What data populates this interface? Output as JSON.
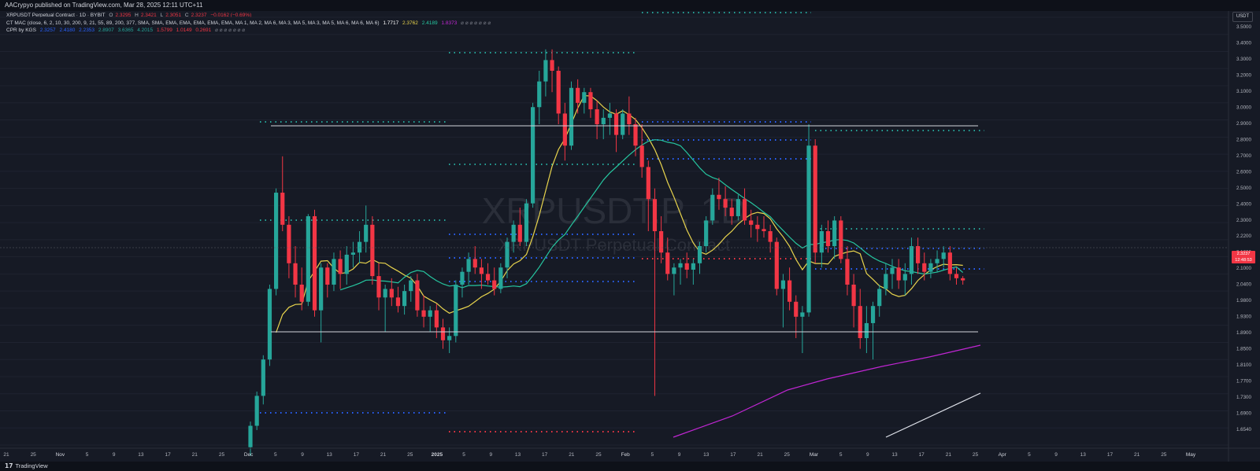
{
  "published": "AACrypyo published on TradingView.com, Mar 28, 2025 12:11 UTC+11",
  "legend": {
    "symbol": "XRPUSDT Perpetual Contract · 1D · BYBIT",
    "open_label": "O",
    "open": "2.3295",
    "high_label": "H",
    "high": "2.3421",
    "low_label": "L",
    "low": "2.3051",
    "close_label": "C",
    "close": "2.3237",
    "change": "−0.0162 (−0.69%)",
    "mac_name": "CT MAC (close, 6, 2, 10, 30, 200, 9, 21, 55, 89, 200, 377, SMA, SMA, EMA, EMA, EMA, EMA, EMA, MA 1, MA 2, MA 6, MA 3, MA 5, MA 3, MA 5, MA 6, MA 6, MA 6)",
    "mac_values": [
      "1.7717",
      "2.3762",
      "2.4189",
      "1.8373"
    ],
    "mac_colors": [
      "#ffffff",
      "#e8d44d",
      "#26c6a0",
      "#c026d3"
    ],
    "cpr_name": "CPR by KGS",
    "cpr_values": [
      "2.3257",
      "2.4180",
      "2.2353",
      "2.8907",
      "3.6365",
      "4.2015",
      "1.5799",
      "1.0149",
      "0.2691"
    ],
    "cpr_colors": [
      "#2962ff",
      "#2962ff",
      "#2962ff",
      "#26a69a",
      "#26a69a",
      "#26a69a",
      "#f23645",
      "#f23645",
      "#f23645"
    ],
    "na_marks": "⌀ ⌀ ⌀ ⌀ ⌀ ⌀ ⌀"
  },
  "watermark": {
    "title": "XRPUSDT.P, 1D",
    "subtitle": "XRPUSDT Perpetual Contract"
  },
  "price_axis": {
    "unit": "USDT",
    "labels": [
      "3.5000",
      "3.4000",
      "3.3000",
      "3.2000",
      "3.1000",
      "3.0000",
      "2.9000",
      "2.8000",
      "2.7000",
      "2.6000",
      "2.5000",
      "2.4000",
      "2.3000",
      "2.2200",
      "2.1600",
      "2.1000",
      "2.0400",
      "1.9800",
      "1.9300",
      "1.8900",
      "1.8500",
      "1.8100",
      "1.7700",
      "1.7300",
      "1.6900",
      "1.6540"
    ],
    "current_price": "2.3237",
    "countdown": "12:48:53"
  },
  "time_axis": {
    "labels": [
      "21",
      "25",
      "Nov",
      "5",
      "9",
      "13",
      "17",
      "21",
      "25",
      "Dec",
      "5",
      "9",
      "13",
      "17",
      "21",
      "25",
      "2025",
      "5",
      "9",
      "13",
      "17",
      "21",
      "25",
      "Feb",
      "5",
      "9",
      "13",
      "17",
      "21",
      "25",
      "Mar",
      "5",
      "9",
      "13",
      "17",
      "21",
      "25",
      "Apr",
      "5",
      "9",
      "13",
      "17",
      "21",
      "25",
      "May"
    ]
  },
  "chart_data": {
    "type": "candlestick",
    "symbol": "XRPUSDT.P",
    "interval": "1D",
    "ylim": [
      1.65,
      3.52
    ],
    "candles": [
      [
        1.54,
        1.66,
        1.5,
        1.64
      ],
      [
        1.64,
        1.8,
        1.62,
        1.78
      ],
      [
        1.78,
        1.97,
        1.74,
        1.95
      ],
      [
        1.95,
        2.3,
        1.92,
        2.28
      ],
      [
        2.28,
        2.75,
        2.25,
        2.73
      ],
      [
        2.73,
        2.9,
        2.55,
        2.58
      ],
      [
        2.58,
        2.62,
        2.33,
        2.4
      ],
      [
        2.4,
        2.48,
        2.24,
        2.3
      ],
      [
        2.3,
        2.38,
        2.18,
        2.22
      ],
      [
        2.22,
        2.63,
        2.2,
        2.62
      ],
      [
        2.62,
        2.65,
        2.15,
        2.18
      ],
      [
        2.18,
        2.4,
        2.03,
        2.38
      ],
      [
        2.38,
        2.4,
        2.24,
        2.3
      ],
      [
        2.3,
        2.45,
        2.27,
        2.42
      ],
      [
        2.42,
        2.46,
        2.28,
        2.35
      ],
      [
        2.35,
        2.48,
        2.3,
        2.44
      ],
      [
        2.44,
        2.5,
        2.38,
        2.45
      ],
      [
        2.45,
        2.55,
        2.4,
        2.5
      ],
      [
        2.5,
        2.67,
        2.45,
        2.58
      ],
      [
        2.58,
        2.62,
        2.3,
        2.34
      ],
      [
        2.34,
        2.4,
        2.18,
        2.24
      ],
      [
        2.24,
        2.3,
        2.08,
        2.28
      ],
      [
        2.28,
        2.33,
        2.2,
        2.24
      ],
      [
        2.24,
        2.29,
        2.17,
        2.2
      ],
      [
        2.2,
        2.3,
        2.16,
        2.27
      ],
      [
        2.27,
        2.34,
        2.22,
        2.32
      ],
      [
        2.32,
        2.35,
        2.15,
        2.18
      ],
      [
        2.18,
        2.25,
        2.1,
        2.15
      ],
      [
        2.15,
        2.2,
        2.08,
        2.18
      ],
      [
        2.18,
        2.21,
        2.05,
        2.1
      ],
      [
        2.1,
        2.14,
        2.0,
        2.04
      ],
      [
        2.04,
        2.1,
        1.98,
        2.06
      ],
      [
        2.06,
        2.32,
        2.03,
        2.3
      ],
      [
        2.3,
        2.38,
        2.24,
        2.36
      ],
      [
        2.36,
        2.45,
        2.3,
        2.42
      ],
      [
        2.42,
        2.48,
        2.35,
        2.38
      ],
      [
        2.38,
        2.42,
        2.28,
        2.35
      ],
      [
        2.35,
        2.4,
        2.3,
        2.32
      ],
      [
        2.32,
        2.38,
        2.25,
        2.28
      ],
      [
        2.28,
        2.4,
        2.26,
        2.38
      ],
      [
        2.38,
        2.52,
        2.33,
        2.5
      ],
      [
        2.5,
        2.6,
        2.45,
        2.58
      ],
      [
        2.58,
        2.66,
        2.48,
        2.5
      ],
      [
        2.5,
        2.7,
        2.48,
        2.68
      ],
      [
        2.68,
        3.15,
        2.66,
        3.13
      ],
      [
        3.13,
        3.3,
        3.05,
        3.25
      ],
      [
        3.25,
        3.4,
        3.18,
        3.35
      ],
      [
        3.35,
        3.4,
        3.2,
        3.3
      ],
      [
        3.3,
        3.32,
        3.05,
        3.1
      ],
      [
        3.1,
        3.15,
        2.88,
        2.95
      ],
      [
        2.95,
        3.25,
        2.93,
        3.22
      ],
      [
        3.22,
        3.26,
        3.1,
        3.15
      ],
      [
        3.15,
        3.22,
        3.1,
        3.2
      ],
      [
        3.2,
        3.22,
        3.08,
        3.12
      ],
      [
        3.12,
        3.16,
        2.98,
        3.05
      ],
      [
        3.05,
        3.12,
        2.98,
        3.08
      ],
      [
        3.08,
        3.15,
        3.0,
        3.1
      ],
      [
        3.1,
        3.12,
        2.92,
        3.0
      ],
      [
        3.0,
        3.12,
        2.98,
        3.1
      ],
      [
        3.1,
        3.18,
        3.0,
        3.05
      ],
      [
        3.05,
        3.08,
        2.9,
        2.95
      ],
      [
        2.95,
        3.05,
        2.8,
        2.85
      ],
      [
        2.85,
        2.88,
        2.55,
        2.7
      ],
      [
        2.7,
        2.75,
        1.78,
        2.55
      ],
      [
        2.55,
        2.62,
        2.4,
        2.45
      ],
      [
        2.45,
        2.52,
        2.32,
        2.35
      ],
      [
        2.35,
        2.4,
        2.25,
        2.38
      ],
      [
        2.38,
        2.42,
        2.3,
        2.4
      ],
      [
        2.4,
        2.45,
        2.33,
        2.37
      ],
      [
        2.37,
        2.42,
        2.3,
        2.4
      ],
      [
        2.4,
        2.5,
        2.35,
        2.48
      ],
      [
        2.48,
        2.62,
        2.45,
        2.6
      ],
      [
        2.6,
        2.75,
        2.58,
        2.72
      ],
      [
        2.72,
        2.8,
        2.65,
        2.7
      ],
      [
        2.7,
        2.76,
        2.62,
        2.66
      ],
      [
        2.66,
        2.7,
        2.58,
        2.62
      ],
      [
        2.62,
        2.72,
        2.6,
        2.7
      ],
      [
        2.7,
        2.75,
        2.58,
        2.6
      ],
      [
        2.6,
        2.65,
        2.52,
        2.58
      ],
      [
        2.58,
        2.62,
        2.5,
        2.56
      ],
      [
        2.56,
        2.62,
        2.52,
        2.55
      ],
      [
        2.55,
        2.58,
        2.45,
        2.5
      ],
      [
        2.5,
        2.52,
        2.25,
        2.28
      ],
      [
        2.28,
        2.35,
        2.1,
        2.32
      ],
      [
        2.32,
        2.38,
        2.18,
        2.22
      ],
      [
        2.22,
        2.25,
        2.05,
        2.15
      ],
      [
        2.15,
        2.2,
        1.98,
        2.17
      ],
      [
        2.17,
        3.05,
        2.15,
        2.95
      ],
      [
        2.95,
        2.98,
        2.4,
        2.45
      ],
      [
        2.45,
        2.58,
        2.38,
        2.55
      ],
      [
        2.55,
        2.6,
        2.45,
        2.48
      ],
      [
        2.48,
        2.62,
        2.42,
        2.6
      ],
      [
        2.6,
        2.62,
        2.4,
        2.42
      ],
      [
        2.42,
        2.48,
        2.25,
        2.3
      ],
      [
        2.3,
        2.35,
        2.1,
        2.2
      ],
      [
        2.2,
        2.28,
        2.0,
        2.05
      ],
      [
        2.05,
        2.2,
        1.98,
        2.12
      ],
      [
        2.12,
        2.22,
        1.95,
        2.2
      ],
      [
        2.2,
        2.3,
        2.15,
        2.28
      ],
      [
        2.28,
        2.4,
        2.25,
        2.35
      ],
      [
        2.35,
        2.42,
        2.28,
        2.38
      ],
      [
        2.38,
        2.42,
        2.28,
        2.32
      ],
      [
        2.32,
        2.4,
        2.25,
        2.35
      ],
      [
        2.35,
        2.52,
        2.3,
        2.48
      ],
      [
        2.48,
        2.52,
        2.35,
        2.4
      ],
      [
        2.4,
        2.45,
        2.32,
        2.36
      ],
      [
        2.36,
        2.42,
        2.33,
        2.4
      ],
      [
        2.4,
        2.46,
        2.36,
        2.42
      ],
      [
        2.42,
        2.48,
        2.38,
        2.45
      ],
      [
        2.45,
        2.48,
        2.32,
        2.35
      ],
      [
        2.35,
        2.38,
        2.3,
        2.33
      ],
      [
        2.33,
        2.34,
        2.3,
        2.32
      ]
    ],
    "levels": [
      {
        "price": 2.92,
        "style": "solid",
        "color": "#d1d4dc"
      },
      {
        "price": 1.98,
        "style": "solid",
        "color": "#d1d4dc"
      },
      {
        "price": 2.41,
        "style": "dotted",
        "color": "#26a69a"
      },
      {
        "price": 2.32,
        "style": "dotted",
        "color": "#2962ff"
      }
    ]
  }
}
